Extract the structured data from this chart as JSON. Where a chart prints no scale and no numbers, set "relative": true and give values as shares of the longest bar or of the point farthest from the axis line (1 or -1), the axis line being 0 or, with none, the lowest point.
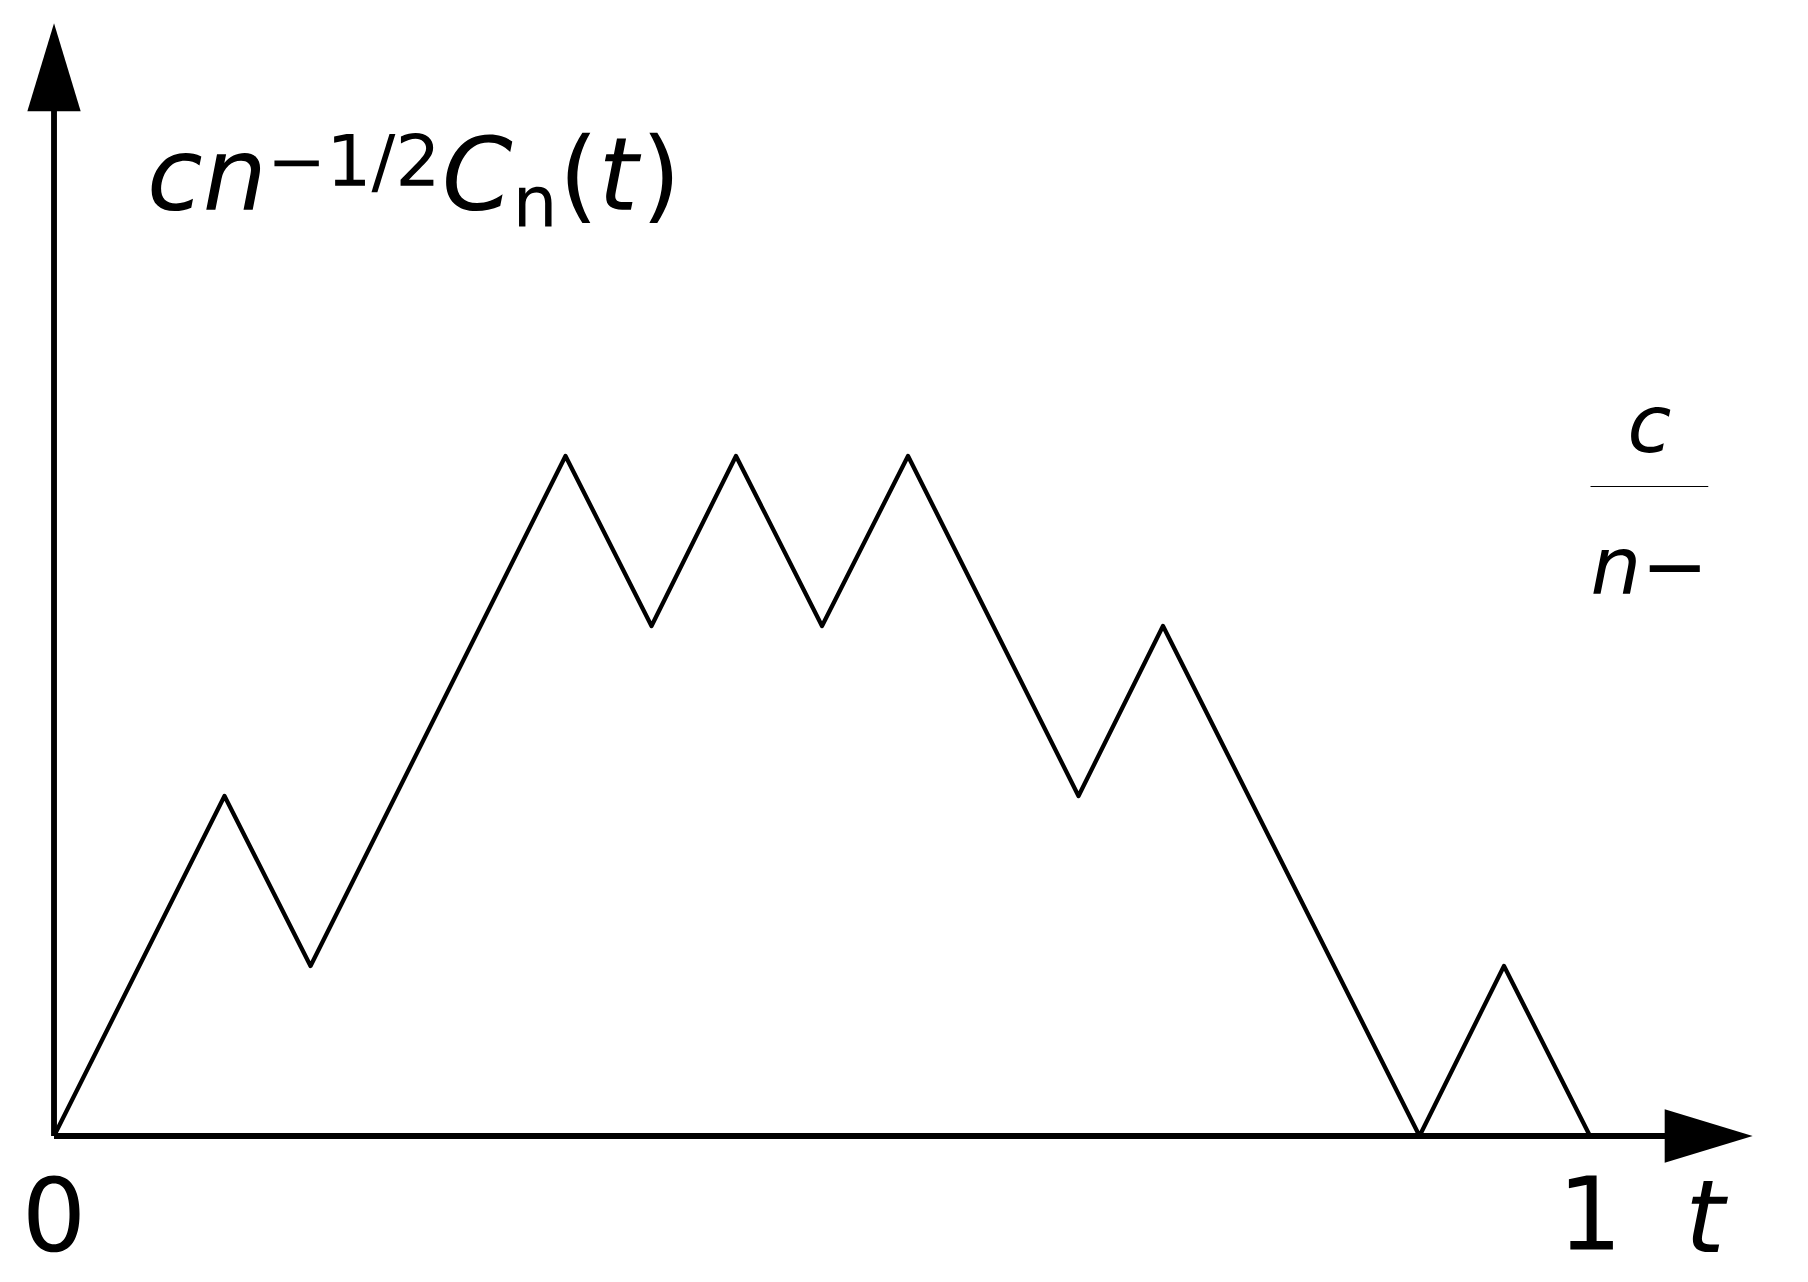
{
  "chart_data": {
    "type": "line",
    "relative": true,
    "xlabel": "*t*",
    "ylabel": "*cn*$^{−1/2}$*C*$_{n}$(*t*)",
    "x": [
      0,
      0.111,
      0.167,
      0.333,
      0.389,
      0.444,
      0.5,
      0.556,
      0.667,
      0.722,
      0.889,
      0.944,
      1
    ],
    "values": [
      0,
      0.5,
      0.25,
      1,
      0.75,
      1,
      0.75,
      1,
      0.5,
      0.75,
      0,
      0.25,
      0
    ],
    "color": "#000000",
    "xlim": [
      0,
      1.05
    ],
    "xticks": [
      0,
      1
    ],
    "marker": "none",
    "line_style": "solid",
    "tick_labels": "x",
    "annotations": [
      "*c*",
      "*n*−"
    ]
  }
}
